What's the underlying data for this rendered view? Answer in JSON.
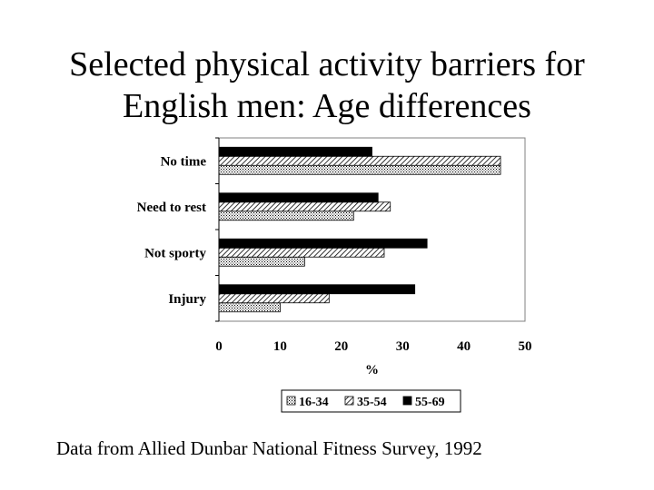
{
  "slide": {
    "title_line1": "Selected physical activity barriers for",
    "title_line2": "English men: Age differences",
    "source": "Data from Allied Dunbar National Fitness Survey, 1992"
  },
  "chart_data": {
    "type": "bar",
    "orientation": "horizontal",
    "categories": [
      "No time",
      "Need to rest",
      "Not sporty",
      "Injury"
    ],
    "series": [
      {
        "name": "16-34",
        "values": [
          46,
          22,
          14,
          10
        ],
        "pattern": "dots"
      },
      {
        "name": "35-54",
        "values": [
          46,
          28,
          27,
          18
        ],
        "pattern": "diagonal-hatch"
      },
      {
        "name": "55-69",
        "values": [
          25,
          26,
          34,
          32
        ],
        "pattern": "solid"
      }
    ],
    "xlabel": "%",
    "ylabel": "",
    "xlim": [
      0,
      50
    ],
    "xticks": [
      "0",
      "10",
      "20",
      "30",
      "40",
      "50"
    ],
    "grid": false,
    "legend_position": "bottom",
    "colors": {
      "solid": "#000000",
      "outline": "#000000",
      "background": "#ffffff"
    }
  }
}
